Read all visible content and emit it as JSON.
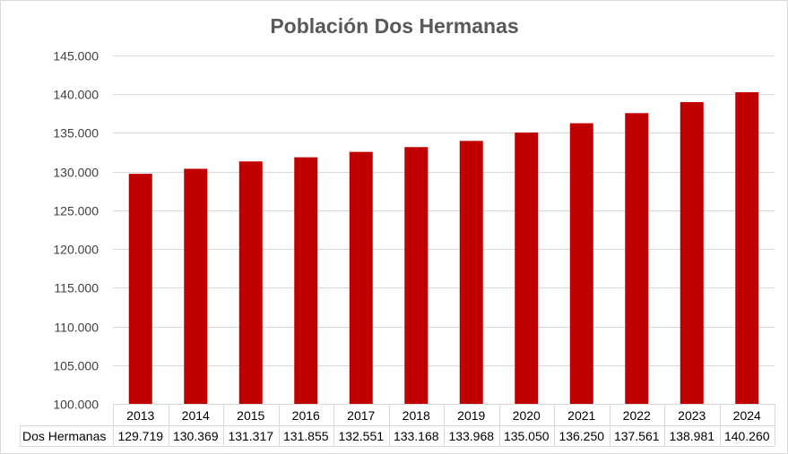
{
  "chart_data": {
    "type": "bar",
    "title": "Población Dos Hermanas",
    "xlabel": "",
    "ylabel": "",
    "categories": [
      "2013",
      "2014",
      "2015",
      "2016",
      "2017",
      "2018",
      "2019",
      "2020",
      "2021",
      "2022",
      "2023",
      "2024"
    ],
    "series": [
      {
        "name": "Dos Hermanas",
        "values": [
          129719,
          130369,
          131317,
          131855,
          132551,
          133168,
          133968,
          135050,
          136250,
          137561,
          138981,
          140260
        ],
        "labels": [
          "129.719",
          "130.369",
          "131.317",
          "131.855",
          "132.551",
          "133.168",
          "133.968",
          "135.050",
          "136.250",
          "137.561",
          "138.981",
          "140.260"
        ],
        "color": "#c00000"
      }
    ],
    "ylim": [
      100000,
      145000
    ],
    "yticks": [
      100000,
      105000,
      110000,
      115000,
      120000,
      125000,
      130000,
      135000,
      140000,
      145000
    ],
    "ytick_labels": [
      "100.000",
      "105.000",
      "110.000",
      "115.000",
      "120.000",
      "125.000",
      "130.000",
      "135.000",
      "140.000",
      "145.000"
    ],
    "grid": true,
    "legend": "data-table-below"
  }
}
